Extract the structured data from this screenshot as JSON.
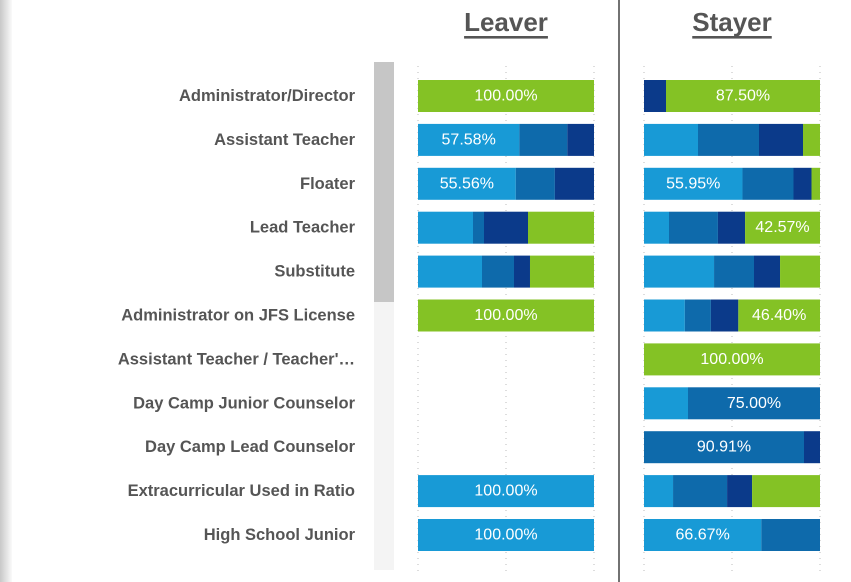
{
  "chart_data": {
    "type": "bar",
    "stacked": true,
    "orientation": "horizontal",
    "categories": [
      "Administrator/Director",
      "Assistant Teacher",
      "Floater",
      "Lead Teacher",
      "Substitute",
      "Administrator on JFS License",
      "Assistant Teacher / Teacher'…",
      "Day Camp Junior Counselor",
      "Day Camp Lead Counselor",
      "Extracurricular Used in Ratio",
      "High School Junior"
    ],
    "xlim": [
      0,
      100
    ],
    "xticks": [
      0,
      50,
      100
    ],
    "grid": true,
    "panels": [
      {
        "title": "Leaver",
        "series": [
          {
            "color": "#189ad6",
            "values": [
              0,
              57.58,
              55.56,
              31.25,
              36.36,
              0,
              null,
              null,
              null,
              100,
              100
            ],
            "value_labels": [
              null,
              "57.58%",
              "55.56%",
              null,
              null,
              null,
              null,
              null,
              null,
              "100.00%",
              "100.00%"
            ]
          },
          {
            "color": "#0e6aab",
            "values": [
              0,
              27.27,
              22.22,
              6.25,
              18.18,
              0,
              null,
              null,
              null,
              0,
              0
            ],
            "value_labels": [
              null,
              null,
              null,
              null,
              null,
              null,
              null,
              null,
              null,
              null,
              null
            ]
          },
          {
            "color": "#0b3a8a",
            "values": [
              0,
              15.15,
              22.22,
              25,
              9.09,
              0,
              null,
              null,
              null,
              0,
              0
            ],
            "value_labels": [
              null,
              null,
              null,
              null,
              null,
              null,
              null,
              null,
              null,
              null,
              null
            ]
          },
          {
            "color": "#84c225",
            "values": [
              100,
              0,
              0,
              37.5,
              36.36,
              100,
              null,
              null,
              null,
              0,
              0
            ],
            "value_labels": [
              "100.00%",
              null,
              null,
              null,
              null,
              "100.00%",
              null,
              null,
              null,
              null,
              null
            ]
          }
        ]
      },
      {
        "title": "Stayer",
        "series": [
          {
            "color": "#189ad6",
            "values": [
              0,
              30.68,
              55.95,
              14.2,
              39.8,
              23.2,
              0,
              25,
              0,
              16.5,
              66.67
            ],
            "value_labels": [
              null,
              null,
              "55.95%",
              null,
              null,
              null,
              null,
              null,
              null,
              null,
              "66.67%"
            ]
          },
          {
            "color": "#0e6aab",
            "values": [
              0,
              34.66,
              28.99,
              27.8,
              22.7,
              14.8,
              0,
              75,
              90.91,
              30.7,
              33.33
            ],
            "value_labels": [
              null,
              null,
              null,
              null,
              null,
              null,
              null,
              "75.00%",
              "90.91%",
              null,
              null
            ]
          },
          {
            "color": "#0b3a8a",
            "values": [
              12.5,
              25,
              10.24,
              15.43,
              14.8,
              15.6,
              0,
              0,
              9.09,
              14.2,
              0
            ],
            "value_labels": [
              null,
              null,
              null,
              null,
              null,
              null,
              null,
              null,
              null,
              null,
              null
            ]
          },
          {
            "color": "#84c225",
            "values": [
              87.5,
              9.66,
              4.82,
              42.57,
              22.7,
              46.4,
              100,
              0,
              0,
              38.6,
              0
            ],
            "value_labels": [
              "87.50%",
              null,
              null,
              "42.57%",
              null,
              "46.40%",
              "100.00%",
              null,
              null,
              null,
              null
            ]
          }
        ]
      }
    ]
  }
}
